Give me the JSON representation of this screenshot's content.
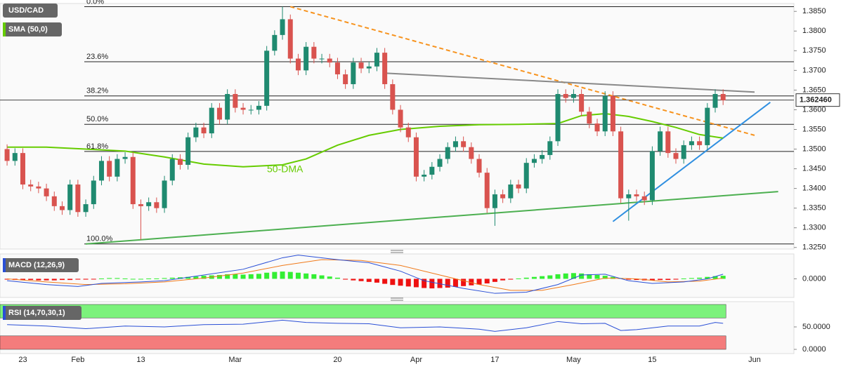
{
  "chart_data": [
    {
      "type": "candlestick",
      "title": "USD/CAD",
      "xlim": [
        -0.9,
        100
      ],
      "ylim": [
        1.3246,
        1.387
      ],
      "xticks": [
        {
          "value": 2,
          "label": "23"
        },
        {
          "value": 9,
          "label": "Feb"
        },
        {
          "value": 17,
          "label": "13"
        },
        {
          "value": 29,
          "label": "Mar"
        },
        {
          "value": 42,
          "label": "20"
        },
        {
          "value": 52,
          "label": "Apr"
        },
        {
          "value": 62,
          "label": "17"
        },
        {
          "value": 72,
          "label": "May"
        },
        {
          "value": 82,
          "label": "15"
        },
        {
          "value": 95,
          "label": "Jun"
        }
      ],
      "yticks": [
        {
          "value": 1.325,
          "label": "1.3250"
        },
        {
          "value": 1.33,
          "label": "1.3300"
        },
        {
          "value": 1.335,
          "label": "1.3350"
        },
        {
          "value": 1.34,
          "label": "1.3400"
        },
        {
          "value": 1.345,
          "label": "1.3450"
        },
        {
          "value": 1.35,
          "label": "1.3500"
        },
        {
          "value": 1.355,
          "label": "1.3550"
        },
        {
          "value": 1.36,
          "label": "1.3600"
        },
        {
          "value": 1.365,
          "label": "1.3650"
        },
        {
          "value": 1.37,
          "label": "1.3700"
        },
        {
          "value": 1.375,
          "label": "1.3750"
        },
        {
          "value": 1.38,
          "label": "1.3800"
        },
        {
          "value": 1.385,
          "label": "1.3850"
        }
      ],
      "up_color": "#1f8a70",
      "down_color": "#d9534f",
      "series": [
        {
          "name": "USD/CAD",
          "open": [
            1.35,
            1.347,
            1.349,
            1.341,
            1.3405,
            1.34,
            1.338,
            1.3355,
            1.3345,
            1.341,
            1.334,
            1.336,
            1.342,
            1.347,
            1.343,
            1.3475,
            1.348,
            1.336,
            1.3355,
            1.3365,
            1.335,
            1.342,
            1.3475,
            1.346,
            1.353,
            1.3555,
            1.354,
            1.3605,
            1.3575,
            1.364,
            1.3605,
            1.36,
            1.36,
            1.361,
            1.375,
            1.379,
            1.383,
            1.373,
            1.37,
            1.376,
            1.373,
            1.373,
            1.372,
            1.369,
            1.3665,
            1.372,
            1.3705,
            1.371,
            1.3745,
            1.3665,
            1.36,
            1.3555,
            1.353,
            1.343,
            1.3435,
            1.3455,
            1.3475,
            1.3505,
            1.352,
            1.3505,
            1.3475,
            1.344,
            1.335,
            1.3385,
            1.3375,
            1.341,
            1.34,
            1.3465,
            1.3475,
            1.3485,
            1.352,
            1.364,
            1.363,
            1.364,
            1.3595,
            1.3565,
            1.3545,
            1.3635,
            1.3545,
            1.3375,
            1.3385,
            1.338,
            1.337,
            1.3495,
            1.3545,
            1.349,
            1.3475,
            1.351,
            1.352,
            1.351,
            1.3605,
            1.364
          ],
          "high": [
            1.3512,
            1.3502,
            1.3502,
            1.3422,
            1.3417,
            1.3412,
            1.3392,
            1.3367,
            1.3422,
            1.3422,
            1.3372,
            1.3432,
            1.3482,
            1.3482,
            1.3487,
            1.3492,
            1.3492,
            1.3372,
            1.3377,
            1.3377,
            1.3432,
            1.3487,
            1.3487,
            1.3542,
            1.3567,
            1.3567,
            1.3617,
            1.3617,
            1.3652,
            1.3652,
            1.3617,
            1.3612,
            1.3622,
            1.3762,
            1.3802,
            1.3862,
            1.3842,
            1.3742,
            1.3772,
            1.3772,
            1.3742,
            1.3742,
            1.3732,
            1.3702,
            1.3732,
            1.3732,
            1.3722,
            1.3757,
            1.3757,
            1.3677,
            1.3612,
            1.3567,
            1.3542,
            1.3447,
            1.3467,
            1.3487,
            1.3517,
            1.3532,
            1.3532,
            1.3517,
            1.3487,
            1.3452,
            1.3397,
            1.3397,
            1.3422,
            1.3422,
            1.3477,
            1.3487,
            1.3497,
            1.3532,
            1.3652,
            1.3652,
            1.3652,
            1.3652,
            1.3607,
            1.3577,
            1.3647,
            1.3647,
            1.3557,
            1.3397,
            1.3397,
            1.3392,
            1.3507,
            1.3557,
            1.3557,
            1.3502,
            1.3522,
            1.3532,
            1.3532,
            1.3617,
            1.3652,
            1.3652
          ],
          "low": [
            1.3458,
            1.3458,
            1.3398,
            1.3393,
            1.3388,
            1.3368,
            1.3343,
            1.3333,
            1.3333,
            1.3328,
            1.3328,
            1.3348,
            1.3408,
            1.3418,
            1.3418,
            1.3463,
            1.3348,
            1.327,
            1.3343,
            1.3338,
            1.3338,
            1.3408,
            1.3448,
            1.3448,
            1.3518,
            1.3528,
            1.3528,
            1.3563,
            1.3563,
            1.3593,
            1.3588,
            1.3588,
            1.3588,
            1.3598,
            1.3738,
            1.3778,
            1.3718,
            1.3688,
            1.3688,
            1.3718,
            1.3718,
            1.3708,
            1.3678,
            1.3653,
            1.3653,
            1.3693,
            1.3693,
            1.3698,
            1.3653,
            1.3588,
            1.3543,
            1.3518,
            1.3418,
            1.3418,
            1.3423,
            1.3443,
            1.3463,
            1.3493,
            1.3493,
            1.3463,
            1.3428,
            1.3338,
            1.3305,
            1.3363,
            1.3363,
            1.3388,
            1.3388,
            1.3453,
            1.3463,
            1.3473,
            1.3508,
            1.3618,
            1.3618,
            1.3583,
            1.3553,
            1.3533,
            1.3533,
            1.3533,
            1.3363,
            1.3318,
            1.3368,
            1.3358,
            1.3358,
            1.3483,
            1.3478,
            1.3463,
            1.3463,
            1.3498,
            1.3498,
            1.3498,
            1.3593,
            1.3612
          ],
          "close": [
            1.347,
            1.349,
            1.341,
            1.3405,
            1.34,
            1.338,
            1.3355,
            1.3345,
            1.341,
            1.334,
            1.336,
            1.342,
            1.347,
            1.343,
            1.3475,
            1.348,
            1.336,
            1.3355,
            1.3365,
            1.335,
            1.342,
            1.3475,
            1.346,
            1.353,
            1.3555,
            1.354,
            1.3605,
            1.3575,
            1.364,
            1.3605,
            1.36,
            1.36,
            1.361,
            1.375,
            1.379,
            1.383,
            1.373,
            1.37,
            1.376,
            1.373,
            1.373,
            1.372,
            1.369,
            1.3665,
            1.372,
            1.3705,
            1.371,
            1.3745,
            1.3665,
            1.36,
            1.3555,
            1.353,
            1.343,
            1.3435,
            1.3455,
            1.3475,
            1.3505,
            1.352,
            1.3505,
            1.3475,
            1.344,
            1.335,
            1.3385,
            1.3375,
            1.341,
            1.34,
            1.3465,
            1.3475,
            1.3485,
            1.352,
            1.364,
            1.363,
            1.364,
            1.3595,
            1.3565,
            1.3545,
            1.3635,
            1.3545,
            1.3375,
            1.3385,
            1.338,
            1.337,
            1.3495,
            1.3545,
            1.349,
            1.3475,
            1.351,
            1.352,
            1.351,
            1.3605,
            1.364,
            1.3624
          ]
        }
      ],
      "sma": {
        "name": "SMA (50,0)",
        "color": "#66cc00",
        "x": [
          0,
          5,
          10,
          15,
          20,
          25,
          30,
          35,
          38,
          42,
          46,
          50,
          55,
          60,
          65,
          70,
          73,
          76,
          79,
          82,
          85,
          88,
          91
        ],
        "values": [
          1.3505,
          1.3505,
          1.35,
          1.3495,
          1.348,
          1.3462,
          1.3455,
          1.346,
          1.3475,
          1.351,
          1.3535,
          1.355,
          1.3558,
          1.3562,
          1.3563,
          1.3565,
          1.3585,
          1.359,
          1.3583,
          1.357,
          1.3555,
          1.3537,
          1.3528
        ]
      },
      "annotation": "50-DMA",
      "fib_levels": [
        {
          "value": 1.3862,
          "label": "0.0%"
        },
        {
          "value": 1.3722,
          "label": "23.6%"
        },
        {
          "value": 1.3635,
          "label": "38.2%"
        },
        {
          "value": 1.3563,
          "label": "50.0%"
        },
        {
          "value": 1.3494,
          "label": "61.8%"
        },
        {
          "value": 1.3259,
          "label": "100.0%"
        }
      ],
      "trendlines": [
        {
          "color": "#f7931e",
          "dashed": true,
          "x": [
            36,
            95
          ],
          "values": [
            1.3862,
            1.3535
          ]
        },
        {
          "color": "#888888",
          "dashed": false,
          "x": [
            48,
            95
          ],
          "values": [
            1.3693,
            1.3645
          ]
        },
        {
          "color": "#4caf50",
          "dashed": false,
          "x": [
            10,
            98
          ],
          "values": [
            1.3259,
            1.3392
          ]
        },
        {
          "color": "#2f8fe0",
          "dashed": false,
          "x": [
            77,
            97
          ],
          "values": [
            1.3316,
            1.3619
          ]
        }
      ],
      "last_price": {
        "value": 1.36246,
        "label": "1.362460"
      }
    },
    {
      "type": "macd",
      "title": "MACD (12,26,9)",
      "ylim": [
        -0.0045,
        0.0065
      ],
      "yticks": [
        {
          "value": 0,
          "label": "0.0000"
        }
      ],
      "histogram": {
        "up_color": "#33ee33",
        "down_color": "#ee1111",
        "values": [
          -0.0002,
          -0.0003,
          -0.0003,
          -0.0003,
          -0.0004,
          -0.0004,
          -0.0004,
          -0.0003,
          -0.0003,
          -0.0002,
          -0.0002,
          -0.0001,
          0.0001,
          0.0002,
          0.0002,
          0.0001,
          0.0,
          0.0,
          0.0001,
          0.0001,
          0.0002,
          0.0003,
          0.0004,
          0.0005,
          0.0006,
          0.0008,
          0.0009,
          0.001,
          0.0012,
          0.0012,
          0.0011,
          0.0012,
          0.0013,
          0.0016,
          0.0018,
          0.0019,
          0.0018,
          0.0016,
          0.0014,
          0.0012,
          0.0009,
          0.0006,
          0.0003,
          -0.0002,
          -0.0004,
          -0.0006,
          -0.0008,
          -0.001,
          -0.0013,
          -0.0016,
          -0.0018,
          -0.002,
          -0.0022,
          -0.0024,
          -0.0025,
          -0.0024,
          -0.0023,
          -0.0021,
          -0.0019,
          -0.0017,
          -0.0015,
          -0.0012,
          -0.0008,
          -0.0004,
          -0.0002,
          0.0001,
          0.0003,
          0.0005,
          0.0007,
          0.0009,
          0.0012,
          0.0014,
          0.0015,
          0.0014,
          0.0012,
          0.001,
          0.0008,
          0.0005,
          0.0002,
          -0.0002,
          -0.0003,
          -0.0004,
          -0.0004,
          -0.0003,
          -0.0003,
          -0.0002,
          0.0001,
          0.0002,
          0.0003,
          0.0005,
          0.0007,
          0.0008
        ]
      },
      "macd": {
        "color": "#2a4fd6",
        "x": [
          0,
          5,
          9,
          12,
          17,
          20,
          25,
          30,
          35,
          37,
          42,
          46,
          50,
          53,
          58,
          62,
          66,
          70,
          73,
          76,
          79,
          82,
          86,
          89,
          91
        ],
        "values": [
          -0.0005,
          -0.0015,
          -0.002,
          -0.0012,
          -0.0008,
          -0.0005,
          0.001,
          0.0025,
          0.0055,
          0.0062,
          0.005,
          0.0042,
          0.002,
          -0.0005,
          -0.0025,
          -0.0038,
          -0.0035,
          -0.0015,
          0.001,
          0.0012,
          -0.0005,
          -0.0012,
          -0.0008,
          0.0,
          0.0012
        ]
      },
      "signal": {
        "color": "#f07a1a",
        "x": [
          0,
          5,
          10,
          15,
          20,
          25,
          30,
          35,
          40,
          45,
          50,
          55,
          60,
          64,
          68,
          72,
          76,
          80,
          84,
          88,
          91
        ],
        "values": [
          0.0,
          -0.0008,
          -0.0015,
          -0.0013,
          -0.0008,
          0.0002,
          0.0015,
          0.0035,
          0.005,
          0.0048,
          0.0035,
          0.001,
          -0.0015,
          -0.003,
          -0.003,
          -0.0015,
          0.0002,
          0.0,
          -0.0008,
          -0.0006,
          0.0002
        ]
      }
    },
    {
      "type": "rsi",
      "title": "RSI (14,70,30,1)",
      "ylim": [
        0,
        100
      ],
      "yticks": [
        {
          "value": 50,
          "label": "50.0000"
        },
        {
          "value": 0,
          "label": "0.0000"
        }
      ],
      "bands": [
        {
          "range": [
            70,
            100
          ],
          "color": "#7cf27c"
        },
        {
          "range": [
            0,
            30
          ],
          "color": "#f47c7c"
        }
      ],
      "line": {
        "color": "#2a4fd6",
        "x": [
          0,
          5,
          10,
          15,
          20,
          25,
          30,
          35,
          38,
          42,
          46,
          50,
          55,
          60,
          62,
          66,
          70,
          73,
          76,
          78,
          80,
          84,
          88,
          90,
          91
        ],
        "values": [
          55,
          52,
          46,
          52,
          50,
          55,
          56,
          65,
          60,
          58,
          57,
          48,
          50,
          45,
          40,
          48,
          62,
          57,
          58,
          42,
          44,
          52,
          52,
          60,
          58
        ]
      }
    }
  ]
}
